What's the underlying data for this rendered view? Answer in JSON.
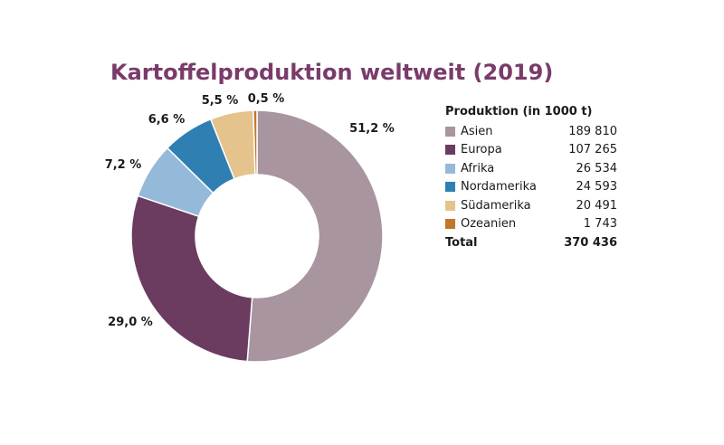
{
  "chart_data": {
    "type": "pie",
    "title": "Kartoffelproduktion weltweit (2019)",
    "legend_title": "Produktion (in 1000 t)",
    "legend_position": "right",
    "slices": [
      {
        "name": "Asien",
        "value": 189810,
        "value_label": "189 810",
        "percent_label": "51,2 %",
        "color": "#a8959f"
      },
      {
        "name": "Europa",
        "value": 107265,
        "value_label": "107 265",
        "percent_label": "29,0 %",
        "color": "#6b3b60"
      },
      {
        "name": "Afrika",
        "value": 26534,
        "value_label": "26 534",
        "percent_label": "7,2 %",
        "color": "#95b9d9"
      },
      {
        "name": "Nordamerika",
        "value": 24593,
        "value_label": "24 593",
        "percent_label": "6,6 %",
        "color": "#2f7fb3"
      },
      {
        "name": "Südamerika",
        "value": 20491,
        "value_label": "20 491",
        "percent_label": "5,5 %",
        "color": "#e4c38d"
      },
      {
        "name": "Ozeanien",
        "value": 1743,
        "value_label": "1 743",
        "percent_label": "0,5 %",
        "color": "#c2762a"
      }
    ],
    "total": {
      "label": "Total",
      "value": 370436,
      "value_label": "370 436"
    }
  }
}
